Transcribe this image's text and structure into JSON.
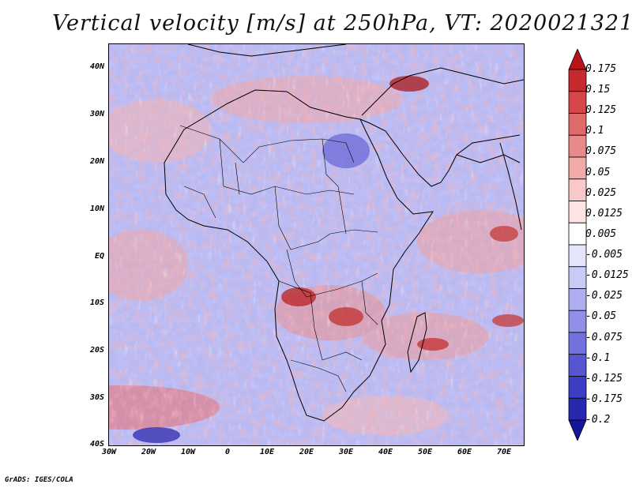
{
  "title": "Vertical velocity [m/s] at 250hPa, VT: 2020021321",
  "footer": "GrADS: IGES/COLA",
  "map": {
    "region": "Africa",
    "lat_labels": [
      "40N",
      "30N",
      "20N",
      "10N",
      "EQ",
      "10S",
      "20S",
      "30S",
      "40S"
    ],
    "lon_labels": [
      "30W",
      "20W",
      "10W",
      "0",
      "10E",
      "20E",
      "30E",
      "40E",
      "50E",
      "60E",
      "70E"
    ],
    "lat_range": [
      -40,
      45
    ],
    "lon_range": [
      -30,
      75
    ]
  },
  "colorbar": {
    "labels": [
      "0.175",
      "0.15",
      "0.125",
      "0.1",
      "0.075",
      "0.05",
      "0.025",
      "0.0125",
      "0.005",
      "-0.005",
      "-0.0125",
      "-0.025",
      "-0.05",
      "-0.075",
      "-0.1",
      "-0.125",
      "-0.175",
      "-0.2"
    ],
    "colors": [
      "#b8141a",
      "#c62a2e",
      "#d5474a",
      "#e0696a",
      "#e98a8a",
      "#f2aaa9",
      "#f8c9c8",
      "#fde3e2",
      "#ffffff",
      "#e4e4fb",
      "#cacaf6",
      "#aeaef0",
      "#9090e8",
      "#7272de",
      "#5656d2",
      "#3c3cc4",
      "#2727b0",
      "#151599"
    ]
  },
  "colors": {
    "positive": "#e35f5f",
    "negative": "#6f6fe0",
    "coast": "#000000"
  }
}
